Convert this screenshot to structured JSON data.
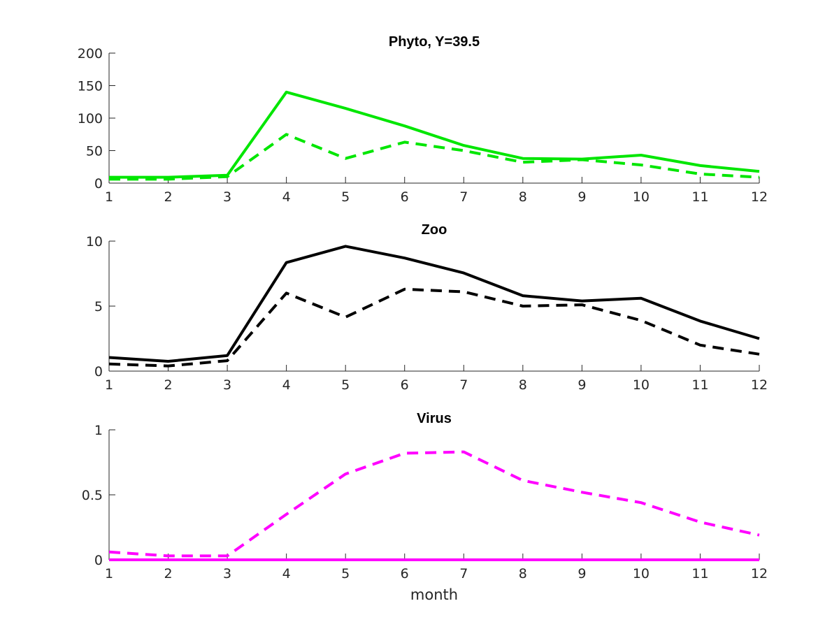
{
  "chart_data": [
    {
      "type": "line",
      "title": "Phyto, Y=39.5",
      "xlabel": "",
      "ylabel": "",
      "x": [
        1,
        2,
        3,
        4,
        5,
        6,
        7,
        8,
        9,
        10,
        11,
        12
      ],
      "xlim": [
        1,
        12
      ],
      "ylim": [
        0,
        200
      ],
      "xticks": [
        "1",
        "2",
        "3",
        "4",
        "5",
        "6",
        "7",
        "8",
        "9",
        "10",
        "11",
        "12"
      ],
      "yticks": [
        0,
        50,
        100,
        150,
        200
      ],
      "ytick_labels": [
        "0",
        "50",
        "100",
        "150",
        "200"
      ],
      "grid": false,
      "series": [
        {
          "name": "solid",
          "style": "solid",
          "color": "#00e600",
          "values": [
            9,
            9,
            12,
            140,
            115,
            88,
            58,
            38,
            37,
            43,
            27,
            18
          ]
        },
        {
          "name": "dashed",
          "style": "dashed",
          "color": "#00e600",
          "values": [
            6,
            6,
            10,
            75,
            38,
            63,
            50,
            32,
            36,
            28,
            14,
            9
          ]
        }
      ]
    },
    {
      "type": "line",
      "title": "Zoo",
      "xlabel": "",
      "ylabel": "",
      "x": [
        1,
        2,
        3,
        4,
        5,
        6,
        7,
        8,
        9,
        10,
        11,
        12
      ],
      "xlim": [
        1,
        12
      ],
      "ylim": [
        0,
        10
      ],
      "xticks": [
        "1",
        "2",
        "3",
        "4",
        "5",
        "6",
        "7",
        "8",
        "9",
        "10",
        "11",
        "12"
      ],
      "yticks": [
        0,
        5,
        10
      ],
      "ytick_labels": [
        "0",
        "5",
        "10"
      ],
      "grid": false,
      "series": [
        {
          "name": "solid",
          "style": "solid",
          "color": "#000000",
          "values": [
            1.05,
            0.75,
            1.2,
            8.35,
            9.6,
            8.7,
            7.55,
            5.8,
            5.4,
            5.6,
            3.85,
            2.5
          ]
        },
        {
          "name": "dashed",
          "style": "dashed",
          "color": "#000000",
          "values": [
            0.55,
            0.4,
            0.8,
            6.0,
            4.15,
            6.3,
            6.1,
            5.0,
            5.1,
            3.9,
            2.0,
            1.3
          ]
        }
      ]
    },
    {
      "type": "line",
      "title": "Virus",
      "xlabel": "month",
      "ylabel": "",
      "x": [
        1,
        2,
        3,
        4,
        5,
        6,
        7,
        8,
        9,
        10,
        11,
        12
      ],
      "xlim": [
        1,
        12
      ],
      "ylim": [
        0,
        1
      ],
      "xticks": [
        "1",
        "2",
        "3",
        "4",
        "5",
        "6",
        "7",
        "8",
        "9",
        "10",
        "11",
        "12"
      ],
      "yticks": [
        0,
        0.5,
        1
      ],
      "ytick_labels": [
        "0",
        "0.5",
        "1"
      ],
      "grid": false,
      "series": [
        {
          "name": "solid",
          "style": "solid",
          "color": "#ff00ff",
          "values": [
            0,
            0,
            0,
            0,
            0,
            0,
            0,
            0,
            0,
            0,
            0,
            0
          ]
        },
        {
          "name": "dashed",
          "style": "dashed",
          "color": "#ff00ff",
          "values": [
            0.06,
            0.03,
            0.03,
            0.35,
            0.66,
            0.82,
            0.83,
            0.61,
            0.52,
            0.44,
            0.29,
            0.19
          ]
        }
      ]
    }
  ]
}
